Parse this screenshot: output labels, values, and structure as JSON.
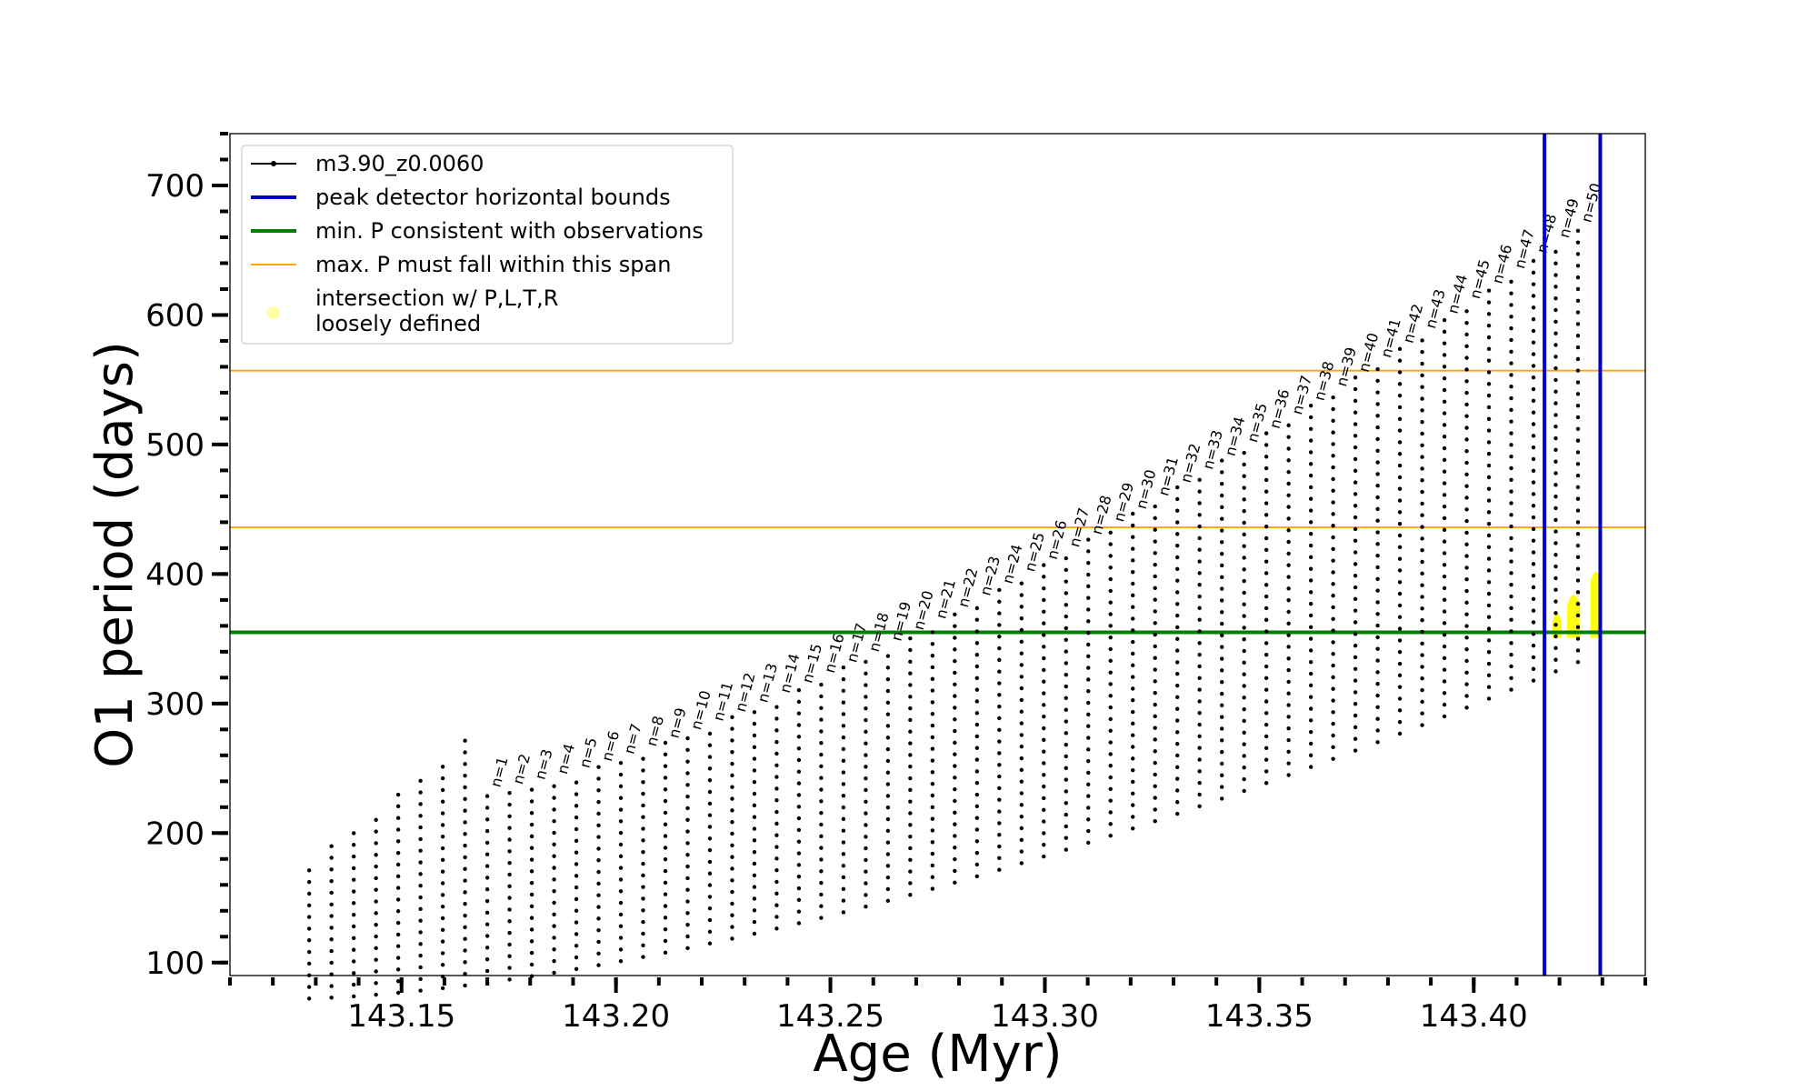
{
  "chart_data": {
    "type": "line",
    "title": "",
    "xlabel": "Age (Myr)",
    "ylabel": "O1 period (days)",
    "xlim": [
      143.11,
      143.44
    ],
    "ylim": [
      90,
      740
    ],
    "x_ticks": [
      143.15,
      143.2,
      143.25,
      143.3,
      143.35,
      143.4
    ],
    "x_tick_labels": [
      "143.15",
      "143.20",
      "143.25",
      "143.30",
      "143.35",
      "143.40"
    ],
    "y_ticks": [
      100,
      200,
      300,
      400,
      500,
      600,
      700
    ],
    "y_tick_labels": [
      "100",
      "200",
      "300",
      "400",
      "500",
      "600",
      "700"
    ],
    "grid": false,
    "legend_position": "top-left",
    "series": [
      {
        "name": "m3.90_z0.0060",
        "color": "#000000",
        "style": "line-with-dots",
        "x_start": 143.125,
        "x_end": 143.433,
        "first_pulse_x": 143.17,
        "pulse_spacing": 0.00519,
        "pulse_count": 50,
        "baseline_start": 100,
        "baseline_end_at_last_pulse": 360,
        "tail_end": 428,
        "peak_n1": 232,
        "peak_n50": 668
      }
    ],
    "pulse_labels": [
      "n=1",
      "n=2",
      "n=3",
      "n=4",
      "n=5",
      "n=6",
      "n=7",
      "n=8",
      "n=9",
      "n=10",
      "n=11",
      "n=12",
      "n=13",
      "n=14",
      "n=15",
      "n=16",
      "n=17",
      "n=18",
      "n=19",
      "n=20",
      "n=21",
      "n=22",
      "n=23",
      "n=24",
      "n=25",
      "n=26",
      "n=27",
      "n=28",
      "n=29",
      "n=30",
      "n=31",
      "n=32",
      "n=33",
      "n=34",
      "n=35",
      "n=36",
      "n=37",
      "n=38",
      "n=39",
      "n=40",
      "n=41",
      "n=42",
      "n=43",
      "n=44",
      "n=45",
      "n=46",
      "n=47",
      "n=48",
      "n=49",
      "n=50"
    ],
    "vertical_lines": {
      "name": "peak detector horizontal bounds",
      "color": "#0000cc",
      "x": [
        143.4165,
        143.4295
      ]
    },
    "horizontal_lines": [
      {
        "name": "min. P consistent with observations",
        "color": "#007f00",
        "y": 355,
        "width": "thick"
      },
      {
        "name": "max. P must fall within this span",
        "color": "#ffa500",
        "y": [
          436,
          557
        ],
        "width": "thin"
      }
    ],
    "highlight": {
      "name": "intersection w/ P,L,T,R",
      "name_line2": "loosely defined",
      "color": "#ffff00",
      "x_range": [
        143.4165,
        143.4295
      ],
      "y_min": 355
    },
    "legend": [
      {
        "label": "m3.90_z0.0060",
        "color": "#000000",
        "kind": "line-dot"
      },
      {
        "label": "peak detector horizontal bounds",
        "color": "#0000cc",
        "kind": "line"
      },
      {
        "label": "min. P consistent with observations",
        "color": "#007f00",
        "kind": "line"
      },
      {
        "label": "max. P must fall within this span",
        "color": "#ffa500",
        "kind": "thin-line"
      },
      {
        "label": "intersection w/ P,L,T,R",
        "label_line2": "loosely defined",
        "color": "#ffff00",
        "kind": "marker"
      }
    ]
  }
}
